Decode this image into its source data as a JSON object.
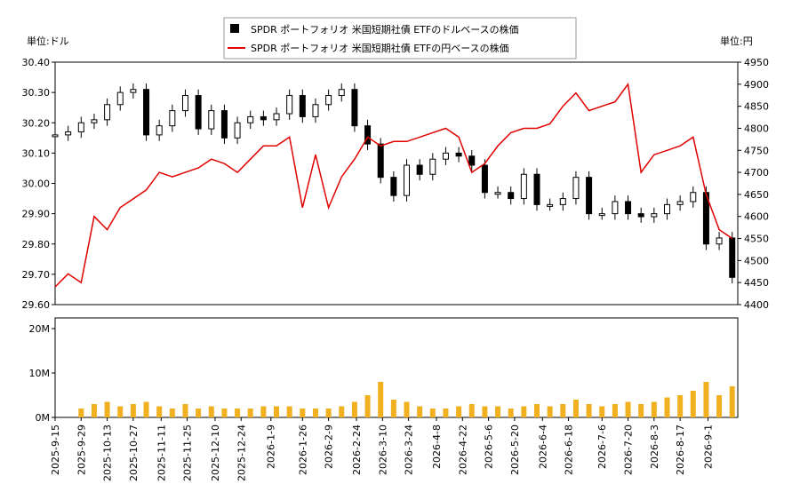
{
  "chart_data": [
    {
      "type": "candlestick+line",
      "legend": {
        "items": [
          {
            "label": "SPDR ポートフォリオ 米国短期社債 ETFのドルベースの株価",
            "color": "#000000"
          },
          {
            "label": "SPDR ポートフォリオ 米国短期社債 ETFの円ベースの株価",
            "color": "#e00000"
          }
        ],
        "placement": "top-center"
      },
      "left_unit": "単位:ドル",
      "right_unit": "単位:円",
      "y_left": {
        "range": [
          29.6,
          30.4
        ],
        "ticks": [
          "29.60",
          "29.70",
          "29.80",
          "29.90",
          "30.00",
          "30.10",
          "30.20",
          "30.30",
          "30.40"
        ]
      },
      "y_right": {
        "range": [
          4400,
          4950
        ],
        "ticks": [
          "4400",
          "4450",
          "4500",
          "4550",
          "4600",
          "4650",
          "4700",
          "4750",
          "4800",
          "4850",
          "4900",
          "4950"
        ]
      },
      "grid": false,
      "series": [
        {
          "name": "SPDR ポートフォリオ 米国短期社債 ETFのドルベースの株価",
          "kind": "ohlc",
          "points": [
            {
              "d": "2025-09-15",
              "c": 30.16
            },
            {
              "d": "2025-09-22",
              "c": 30.17
            },
            {
              "d": "2025-09-29",
              "c": 30.2
            },
            {
              "d": "2025-10-06",
              "c": 30.21
            },
            {
              "d": "2025-10-13",
              "c": 30.26
            },
            {
              "d": "2025-10-20",
              "c": 30.3
            },
            {
              "d": "2025-10-27",
              "c": 30.31
            },
            {
              "d": "2025-11-03",
              "c": 30.16
            },
            {
              "d": "2025-11-10",
              "c": 30.19
            },
            {
              "d": "2025-11-17",
              "c": 30.24
            },
            {
              "d": "2025-11-24",
              "c": 30.29
            },
            {
              "d": "2025-12-01",
              "c": 30.18
            },
            {
              "d": "2025-12-08",
              "c": 30.24
            },
            {
              "d": "2025-12-15",
              "c": 30.15
            },
            {
              "d": "2025-12-22",
              "c": 30.2
            },
            {
              "d": "2025-12-29",
              "c": 30.22
            },
            {
              "d": "2026-01-05",
              "c": 30.21
            },
            {
              "d": "2026-01-12",
              "c": 30.23
            },
            {
              "d": "2026-01-19",
              "c": 30.29
            },
            {
              "d": "2026-01-26",
              "c": 30.22
            },
            {
              "d": "2026-02-02",
              "c": 30.26
            },
            {
              "d": "2026-02-09",
              "c": 30.29
            },
            {
              "d": "2026-02-16",
              "c": 30.31
            },
            {
              "d": "2026-02-23",
              "c": 30.19
            },
            {
              "d": "2026-03-02",
              "c": 30.13
            },
            {
              "d": "2026-03-09",
              "c": 30.02
            },
            {
              "d": "2026-03-16",
              "c": 29.96
            },
            {
              "d": "2026-03-23",
              "c": 30.06
            },
            {
              "d": "2026-03-30",
              "c": 30.03
            },
            {
              "d": "2026-04-06",
              "c": 30.08
            },
            {
              "d": "2026-04-13",
              "c": 30.1
            },
            {
              "d": "2026-04-20",
              "c": 30.09
            },
            {
              "d": "2026-04-27",
              "c": 30.06
            },
            {
              "d": "2026-05-04",
              "c": 29.97
            },
            {
              "d": "2026-05-11",
              "c": 29.97
            },
            {
              "d": "2026-05-18",
              "c": 29.95
            },
            {
              "d": "2026-05-25",
              "c": 30.03
            },
            {
              "d": "2026-06-01",
              "c": 29.93
            },
            {
              "d": "2026-06-08",
              "c": 29.93
            },
            {
              "d": "2026-06-15",
              "c": 29.95
            },
            {
              "d": "2026-06-22",
              "c": 30.02
            },
            {
              "d": "2026-06-29",
              "c": 29.9
            },
            {
              "d": "2026-07-06",
              "c": 29.9
            },
            {
              "d": "2026-07-13",
              "c": 29.94
            },
            {
              "d": "2026-07-20",
              "c": 29.9
            },
            {
              "d": "2026-07-27",
              "c": 29.89
            },
            {
              "d": "2026-08-03",
              "c": 29.9
            },
            {
              "d": "2026-08-10",
              "c": 29.93
            },
            {
              "d": "2026-08-17",
              "c": 29.94
            },
            {
              "d": "2026-08-24",
              "c": 29.97
            },
            {
              "d": "2026-08-31",
              "c": 29.8
            },
            {
              "d": "2026-09-07",
              "c": 29.82
            },
            {
              "d": "2026-09-14",
              "c": 29.69
            }
          ]
        },
        {
          "name": "SPDR ポートフォリオ 米国短期社債 ETFの円ベースの株価",
          "kind": "line",
          "color": "#e00000",
          "points": [
            {
              "d": "2025-09-15",
              "c": 4440
            },
            {
              "d": "2025-09-22",
              "c": 4470
            },
            {
              "d": "2025-09-29",
              "c": 4450
            },
            {
              "d": "2025-10-06",
              "c": 4600
            },
            {
              "d": "2025-10-13",
              "c": 4570
            },
            {
              "d": "2025-10-20",
              "c": 4620
            },
            {
              "d": "2025-10-27",
              "c": 4640
            },
            {
              "d": "2025-11-03",
              "c": 4660
            },
            {
              "d": "2025-11-10",
              "c": 4700
            },
            {
              "d": "2025-11-17",
              "c": 4690
            },
            {
              "d": "2025-11-24",
              "c": 4700
            },
            {
              "d": "2025-12-01",
              "c": 4710
            },
            {
              "d": "2025-12-08",
              "c": 4730
            },
            {
              "d": "2025-12-15",
              "c": 4720
            },
            {
              "d": "2025-12-22",
              "c": 4700
            },
            {
              "d": "2025-12-29",
              "c": 4730
            },
            {
              "d": "2026-01-05",
              "c": 4760
            },
            {
              "d": "2026-01-12",
              "c": 4760
            },
            {
              "d": "2026-01-19",
              "c": 4780
            },
            {
              "d": "2026-01-26",
              "c": 4620
            },
            {
              "d": "2026-02-02",
              "c": 4740
            },
            {
              "d": "2026-02-09",
              "c": 4620
            },
            {
              "d": "2026-02-16",
              "c": 4690
            },
            {
              "d": "2026-02-23",
              "c": 4730
            },
            {
              "d": "2026-03-02",
              "c": 4780
            },
            {
              "d": "2026-03-09",
              "c": 4760
            },
            {
              "d": "2026-03-16",
              "c": 4770
            },
            {
              "d": "2026-03-23",
              "c": 4770
            },
            {
              "d": "2026-03-30",
              "c": 4780
            },
            {
              "d": "2026-04-06",
              "c": 4790
            },
            {
              "d": "2026-04-13",
              "c": 4800
            },
            {
              "d": "2026-04-20",
              "c": 4780
            },
            {
              "d": "2026-04-27",
              "c": 4700
            },
            {
              "d": "2026-05-04",
              "c": 4720
            },
            {
              "d": "2026-05-11",
              "c": 4760
            },
            {
              "d": "2026-05-18",
              "c": 4790
            },
            {
              "d": "2026-05-25",
              "c": 4800
            },
            {
              "d": "2026-06-01",
              "c": 4800
            },
            {
              "d": "2026-06-08",
              "c": 4810
            },
            {
              "d": "2026-06-15",
              "c": 4850
            },
            {
              "d": "2026-06-22",
              "c": 4880
            },
            {
              "d": "2026-06-29",
              "c": 4840
            },
            {
              "d": "2026-07-06",
              "c": 4850
            },
            {
              "d": "2026-07-13",
              "c": 4860
            },
            {
              "d": "2026-07-20",
              "c": 4900
            },
            {
              "d": "2026-07-27",
              "c": 4700
            },
            {
              "d": "2026-08-03",
              "c": 4740
            },
            {
              "d": "2026-08-10",
              "c": 4750
            },
            {
              "d": "2026-08-17",
              "c": 4760
            },
            {
              "d": "2026-08-24",
              "c": 4780
            },
            {
              "d": "2026-08-31",
              "c": 4650
            },
            {
              "d": "2026-09-07",
              "c": 4570
            },
            {
              "d": "2026-09-14",
              "c": 4550
            }
          ]
        }
      ],
      "x_ticks": [
        "2025-9-15",
        "2025-9-29",
        "2025-10-13",
        "2025-10-27",
        "2025-11-11",
        "2025-11-25",
        "2025-12-10",
        "2025-12-24",
        "2026-1-9",
        "2026-1-26",
        "2026-2-9",
        "2026-2-24",
        "2026-3-10",
        "2026-3-24",
        "2026-4-8",
        "2026-4-22",
        "2026-5-6",
        "2026-5-20",
        "2026-6-4",
        "2026-6-18",
        "2026-7-6",
        "2026-7-20",
        "2026-8-3",
        "2026-8-17",
        "2026-9-1"
      ]
    },
    {
      "type": "bar",
      "y_range": [
        0,
        20000000
      ],
      "y_ticks": [
        "0M",
        "10M",
        "20M"
      ],
      "grid": false,
      "bar_color": "#f0b020",
      "weekly_volume": [
        0,
        0,
        2000000,
        3000000,
        3500000,
        2500000,
        3000000,
        3500000,
        2500000,
        2000000,
        3000000,
        2000000,
        2500000,
        2000000,
        2000000,
        2000000,
        2500000,
        2500000,
        2500000,
        2000000,
        2000000,
        2000000,
        2500000,
        3500000,
        5000000,
        8000000,
        4000000,
        3500000,
        2500000,
        2000000,
        2000000,
        2500000,
        3000000,
        2500000,
        2500000,
        2000000,
        2500000,
        3000000,
        2500000,
        3000000,
        4000000,
        3000000,
        2500000,
        3000000,
        3500000,
        3000000,
        3500000,
        4500000,
        5000000,
        6000000,
        8000000,
        5000000,
        7000000
      ]
    }
  ]
}
